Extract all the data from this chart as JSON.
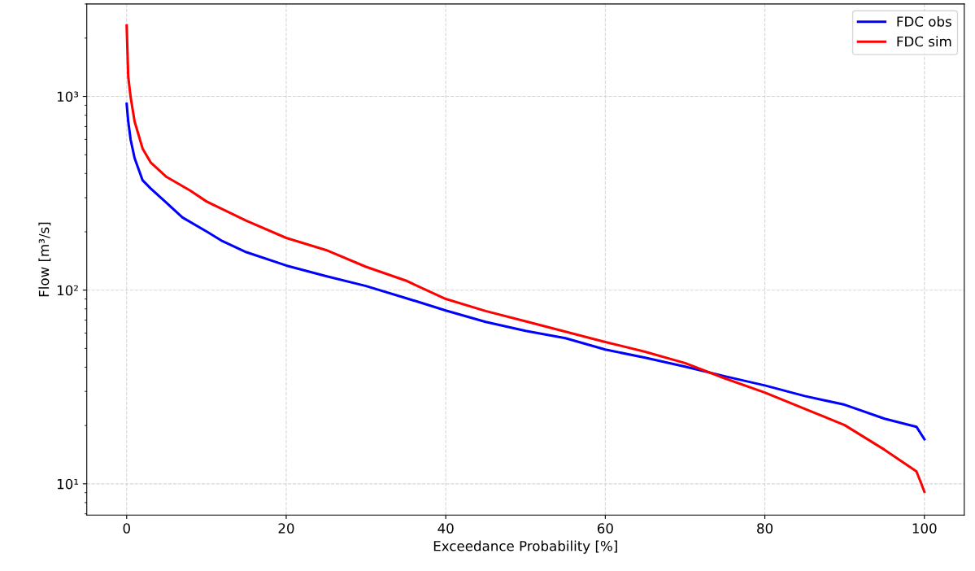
{
  "chart_data": {
    "type": "line",
    "xlabel": "Exceedance Probability [%]",
    "ylabel": "Flow [m³/s]",
    "log": "y",
    "grid": true,
    "legend": "top right",
    "line_style": "solid",
    "marker": "none",
    "xlim": [
      -5,
      105
    ],
    "xticks": [
      0,
      20,
      40,
      60,
      80,
      100
    ],
    "ylim": [
      6.9,
      3000
    ],
    "yticks": [
      {
        "value": 10,
        "label": "10¹"
      },
      {
        "value": 100,
        "label": "10²"
      },
      {
        "value": 1000,
        "label": "10³"
      }
    ],
    "series": [
      {
        "name": "FDC obs",
        "color": "#0000ff",
        "x": [
          0,
          0.2,
          0.5,
          1,
          2,
          3,
          5,
          7,
          10,
          12,
          15,
          20,
          25,
          30,
          35,
          40,
          45,
          50,
          55,
          60,
          65,
          70,
          75,
          80,
          85,
          90,
          95,
          99,
          100
        ],
        "values": [
          916,
          741,
          598,
          480,
          369,
          335,
          282,
          237,
          201,
          179,
          157,
          134,
          118,
          105,
          91,
          78.5,
          68.5,
          61.6,
          56.5,
          49.3,
          44.8,
          40.3,
          35.9,
          32.2,
          28.4,
          25.6,
          21.7,
          19.7,
          17
        ]
      },
      {
        "name": "FDC sim",
        "color": "#ff0000",
        "x": [
          0,
          0.2,
          0.5,
          1,
          2,
          3,
          5,
          8,
          10,
          15,
          20,
          25,
          30,
          35,
          40,
          45,
          50,
          55,
          60,
          65,
          70,
          75,
          80,
          85,
          90,
          95,
          99,
          99.5,
          100
        ],
        "values": [
          2322,
          1262,
          990,
          741,
          538,
          457,
          384,
          326,
          287,
          228,
          186,
          161,
          132,
          112,
          90,
          78,
          69,
          61,
          54,
          48,
          42,
          35,
          29.6,
          24.4,
          20.1,
          15,
          11.6,
          10.3,
          9.1
        ]
      }
    ]
  }
}
